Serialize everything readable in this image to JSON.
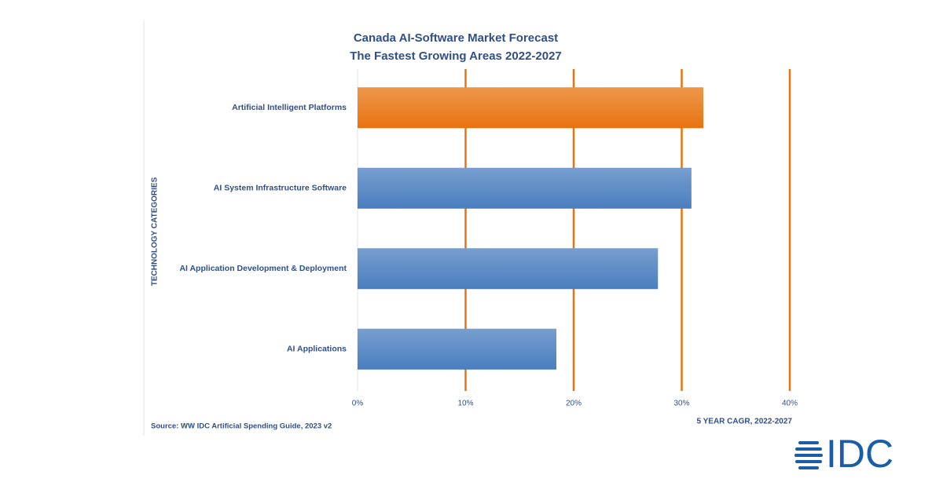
{
  "chart_data": {
    "type": "barh",
    "title": "Canada AI-Software Market Forecast",
    "subtitle": "The Fastest Growing Areas 2022-2027",
    "categories": [
      "Artificial Intelligent Platforms",
      "AI System Infrastructure Software",
      "AI Application Development & Deployment",
      "AI Applications"
    ],
    "values": [
      32.0,
      30.9,
      27.8,
      18.4
    ],
    "colors": [
      "#e8730f",
      "#4a7ebf",
      "#4a7ebf",
      "#4a7ebf"
    ],
    "xlim": [
      0,
      40
    ],
    "xticks": [
      {
        "value": 0,
        "label": "0%"
      },
      {
        "value": 10,
        "label": "10%"
      },
      {
        "value": 20,
        "label": "20%"
      },
      {
        "value": 30,
        "label": "30%"
      },
      {
        "value": 40,
        "label": "40%"
      }
    ],
    "grid": true,
    "grid_color": "#e8730f",
    "xlabel": "5 YEAR CAGR, 2022-2027",
    "ylabel": "TECHNOLOGY CATEGORIES",
    "source": "Source: WW IDC Artificial Spending Guide, 2023 v2"
  },
  "logo": "IDC"
}
